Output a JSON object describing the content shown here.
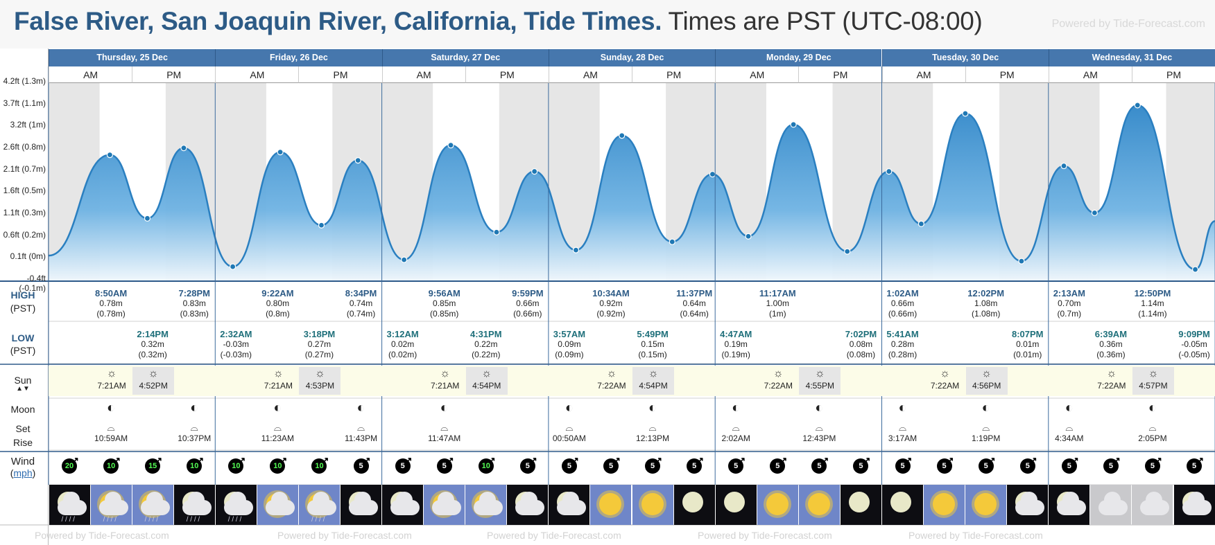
{
  "header": {
    "location": "False River, San Joaquin River, California, Tide Times.",
    "timezone": "Times are PST (UTC-08:00)",
    "powered_by": "Powered by Tide-Forecast.com"
  },
  "labels": {
    "high": "HIGH",
    "high_sub": "(PST)",
    "low": "LOW",
    "low_sub": "(PST)",
    "sun": "Sun",
    "moon": "Moon",
    "set": "Set",
    "rise": "Rise",
    "wind": "Wind",
    "wind_unit": "mph",
    "am": "AM",
    "pm": "PM"
  },
  "days": [
    "Thursday, 25 Dec",
    "Friday, 26 Dec",
    "Saturday, 27 Dec",
    "Sunday, 28 Dec",
    "Monday, 29 Dec",
    "Tuesday, 30 Dec",
    "Wednesday, 31 Dec"
  ],
  "y_axis": [
    "4.2ft (1.3m)",
    "3.7ft (1.1m)",
    "3.2ft (1m)",
    "2.6ft (0.8m)",
    "2.1ft (0.7m)",
    "1.6ft (0.5m)",
    "1.1ft (0.3m)",
    "0.6ft (0.2m)",
    "0.1ft (0m)",
    "-0.4ft (-0.1m)"
  ],
  "chart_data": {
    "type": "area",
    "ylabel": "",
    "ylim_m": [
      -0.13,
      1.3
    ],
    "tides": [
      {
        "day": 0,
        "hour": 0.0,
        "m": 0.05
      },
      {
        "day": 0,
        "hour": 8.83,
        "m": 0.78,
        "kind": "high",
        "time": "8:50AM",
        "m_label": "0.78m",
        "alt": "(0.78m)"
      },
      {
        "day": 0,
        "hour": 14.23,
        "m": 0.32,
        "kind": "low",
        "time": "2:14PM",
        "m_label": "0.32m",
        "alt": "(0.32m)"
      },
      {
        "day": 0,
        "hour": 19.47,
        "m": 0.83,
        "kind": "high",
        "time": "7:28PM",
        "m_label": "0.83m",
        "alt": "(0.83m)"
      },
      {
        "day": 1,
        "hour": 2.53,
        "m": -0.03,
        "kind": "low",
        "time": "2:32AM",
        "m_label": "-0.03m",
        "alt": "(-0.03m)"
      },
      {
        "day": 1,
        "hour": 9.37,
        "m": 0.8,
        "kind": "high",
        "time": "9:22AM",
        "m_label": "0.80m",
        "alt": "(0.8m)"
      },
      {
        "day": 1,
        "hour": 15.3,
        "m": 0.27,
        "kind": "low",
        "time": "3:18PM",
        "m_label": "0.27m",
        "alt": "(0.27m)"
      },
      {
        "day": 1,
        "hour": 20.57,
        "m": 0.74,
        "kind": "high",
        "time": "8:34PM",
        "m_label": "0.74m",
        "alt": "(0.74m)"
      },
      {
        "day": 2,
        "hour": 3.2,
        "m": 0.02,
        "kind": "low",
        "time": "3:12AM",
        "m_label": "0.02m",
        "alt": "(0.02m)"
      },
      {
        "day": 2,
        "hour": 9.93,
        "m": 0.85,
        "kind": "high",
        "time": "9:56AM",
        "m_label": "0.85m",
        "alt": "(0.85m)"
      },
      {
        "day": 2,
        "hour": 16.52,
        "m": 0.22,
        "kind": "low",
        "time": "4:31PM",
        "m_label": "0.22m",
        "alt": "(0.22m)"
      },
      {
        "day": 2,
        "hour": 21.98,
        "m": 0.66,
        "kind": "high",
        "time": "9:59PM",
        "m_label": "0.66m",
        "alt": "(0.66m)"
      },
      {
        "day": 3,
        "hour": 3.95,
        "m": 0.09,
        "kind": "low",
        "time": "3:57AM",
        "m_label": "0.09m",
        "alt": "(0.09m)"
      },
      {
        "day": 3,
        "hour": 10.57,
        "m": 0.92,
        "kind": "high",
        "time": "10:34AM",
        "m_label": "0.92m",
        "alt": "(0.92m)"
      },
      {
        "day": 3,
        "hour": 17.82,
        "m": 0.15,
        "kind": "low",
        "time": "5:49PM",
        "m_label": "0.15m",
        "alt": "(0.15m)"
      },
      {
        "day": 3,
        "hour": 23.62,
        "m": 0.64,
        "kind": "high",
        "time": "11:37PM",
        "m_label": "0.64m",
        "alt": "(0.64m)"
      },
      {
        "day": 4,
        "hour": 4.78,
        "m": 0.19,
        "kind": "low",
        "time": "4:47AM",
        "m_label": "0.19m",
        "alt": "(0.19m)"
      },
      {
        "day": 4,
        "hour": 11.28,
        "m": 1.0,
        "kind": "high",
        "time": "11:17AM",
        "m_label": "1.00m",
        "alt": "(1m)"
      },
      {
        "day": 4,
        "hour": 19.03,
        "m": 0.08,
        "kind": "low",
        "time": "7:02PM",
        "m_label": "0.08m",
        "alt": "(0.08m)"
      },
      {
        "day": 5,
        "hour": 1.03,
        "m": 0.66,
        "kind": "high",
        "time": "1:02AM",
        "m_label": "0.66m",
        "alt": "(0.66m)"
      },
      {
        "day": 5,
        "hour": 5.68,
        "m": 0.28,
        "kind": "low",
        "time": "5:41AM",
        "m_label": "0.28m",
        "alt": "(0.28m)"
      },
      {
        "day": 5,
        "hour": 12.03,
        "m": 1.08,
        "kind": "high",
        "time": "12:02PM",
        "m_label": "1.08m",
        "alt": "(1.08m)"
      },
      {
        "day": 5,
        "hour": 20.12,
        "m": 0.01,
        "kind": "low",
        "time": "8:07PM",
        "m_label": "0.01m",
        "alt": "(0.01m)"
      },
      {
        "day": 6,
        "hour": 2.22,
        "m": 0.7,
        "kind": "high",
        "time": "2:13AM",
        "m_label": "0.70m",
        "alt": "(0.7m)"
      },
      {
        "day": 6,
        "hour": 6.65,
        "m": 0.36,
        "kind": "low",
        "time": "6:39AM",
        "m_label": "0.36m",
        "alt": "(0.36m)"
      },
      {
        "day": 6,
        "hour": 12.83,
        "m": 1.14,
        "kind": "high",
        "time": "12:50PM",
        "m_label": "1.14m",
        "alt": "(1.14m)"
      },
      {
        "day": 6,
        "hour": 21.15,
        "m": -0.05,
        "kind": "low",
        "time": "9:09PM",
        "m_label": "-0.05m",
        "alt": "(-0.05m)"
      },
      {
        "day": 7,
        "hour": 0.0,
        "m": 0.3
      }
    ]
  },
  "sun": [
    {
      "rise": "7:21AM",
      "set": "4:52PM"
    },
    {
      "rise": "7:21AM",
      "set": "4:53PM"
    },
    {
      "rise": "7:21AM",
      "set": "4:54PM"
    },
    {
      "rise": "7:22AM",
      "set": "4:54PM"
    },
    {
      "rise": "7:22AM",
      "set": "4:55PM"
    },
    {
      "rise": "7:22AM",
      "set": "4:56PM"
    },
    {
      "rise": "7:22AM",
      "set": "4:57PM"
    }
  ],
  "moon": [
    {
      "col": 1,
      "time": "10:59AM"
    },
    {
      "col": 3,
      "time": "10:37PM"
    },
    {
      "col": 5,
      "time": "11:23AM"
    },
    {
      "col": 7,
      "time": "11:43PM"
    },
    {
      "col": 9,
      "time": "11:47AM"
    },
    {
      "col": 12,
      "time": "00:50AM"
    },
    {
      "col": 14,
      "time": "12:13PM"
    },
    {
      "col": 16,
      "time": "2:02AM"
    },
    {
      "col": 18,
      "time": "12:43PM"
    },
    {
      "col": 20,
      "time": "3:17AM"
    },
    {
      "col": 22,
      "time": "1:19PM"
    },
    {
      "col": 24,
      "time": "4:34AM"
    },
    {
      "col": 26,
      "time": "2:05PM"
    }
  ],
  "wind": [
    "20",
    "10",
    "15",
    "10",
    "10",
    "10",
    "10",
    "5",
    "5",
    "5",
    "10",
    "5",
    "5",
    "5",
    "5",
    "5",
    "5",
    "5",
    "5",
    "5",
    "5",
    "5",
    "5",
    "5",
    "5",
    "5",
    "5",
    "5"
  ],
  "weather": [
    "night-rain",
    "day-rain",
    "day-rain",
    "night-rain",
    "night-rain",
    "day-cloud",
    "day-rain",
    "night-cloud",
    "night-cloud",
    "day-cloud",
    "day-cloud",
    "night-cloud",
    "night-cloud",
    "day-sun",
    "day-sun",
    "night-clear",
    "night-clear",
    "day-sun",
    "day-sun",
    "night-clear",
    "night-clear",
    "day-sun",
    "day-sun",
    "night-cloud",
    "night-cloud",
    "overcast",
    "overcast",
    "night-cloud"
  ]
}
